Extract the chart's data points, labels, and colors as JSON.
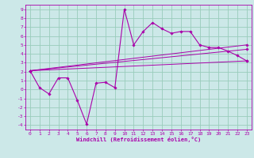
{
  "xlabel": "Windchill (Refroidissement éolien,°C)",
  "bg_color": "#cce8e8",
  "grid_color": "#99ccbb",
  "line_color": "#aa00aa",
  "xlim": [
    -0.5,
    23.5
  ],
  "ylim": [
    -4.5,
    9.5
  ],
  "xticks": [
    0,
    1,
    2,
    3,
    4,
    5,
    6,
    7,
    8,
    9,
    10,
    11,
    12,
    13,
    14,
    15,
    16,
    17,
    18,
    19,
    20,
    21,
    22,
    23
  ],
  "yticks": [
    -4,
    -3,
    -2,
    -1,
    0,
    1,
    2,
    3,
    4,
    5,
    6,
    7,
    8,
    9
  ],
  "main_x": [
    0,
    1,
    2,
    3,
    4,
    5,
    6,
    7,
    8,
    9,
    10,
    11,
    12,
    13,
    14,
    15,
    16,
    17,
    18,
    19,
    20,
    21,
    22,
    23
  ],
  "main_y": [
    2.1,
    0.2,
    -0.5,
    1.3,
    1.3,
    -1.2,
    -3.9,
    0.7,
    0.8,
    0.2,
    9.0,
    5.0,
    6.5,
    7.5,
    6.8,
    6.3,
    6.5,
    6.5,
    5.0,
    4.7,
    4.7,
    4.3,
    3.8,
    3.2
  ],
  "line1_x": [
    0,
    23
  ],
  "line1_y": [
    2.1,
    5.0
  ],
  "line2_x": [
    0,
    23
  ],
  "line2_y": [
    2.1,
    4.5
  ],
  "line3_x": [
    0,
    23
  ],
  "line3_y": [
    2.1,
    3.2
  ],
  "tick_fontsize": 4.5,
  "xlabel_fontsize": 5.0,
  "linewidth_main": 0.8,
  "linewidth_ref": 0.7,
  "markersize": 1.8
}
